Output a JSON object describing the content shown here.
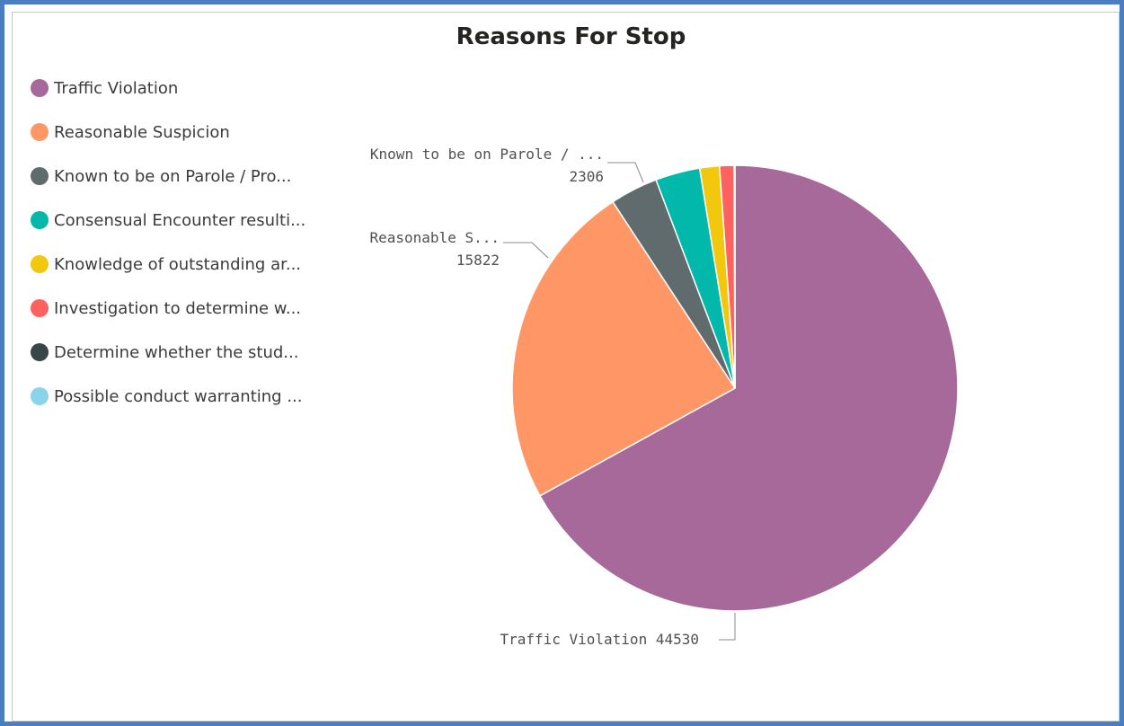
{
  "chart_data": {
    "type": "pie",
    "title": "Reasons For Stop",
    "legend_position": "left",
    "categories": [
      "Traffic Violation",
      "Reasonable Suspicion",
      "Known to be on Parole / Pro...",
      "Consensual Encounter resulti...",
      "Knowledge of outstanding ar...",
      "Investigation to determine w...",
      "Determine whether the stud...",
      "Possible conduct warranting ..."
    ],
    "values": [
      44530,
      15822,
      2306,
      2150,
      950,
      700,
      25,
      10
    ],
    "colors": [
      "#a66999",
      "#fe9666",
      "#5f6b6d",
      "#01b8aa",
      "#f2c80f",
      "#fd625e",
      "#374649",
      "#8ad4eb"
    ],
    "data_labels": [
      {
        "index": 0,
        "name": "Traffic Violation",
        "value": "44530"
      },
      {
        "index": 1,
        "name": "Reasonable S...",
        "value": "15822"
      },
      {
        "index": 2,
        "name": "Known to be on Parole / ...",
        "value": "2306"
      }
    ]
  }
}
